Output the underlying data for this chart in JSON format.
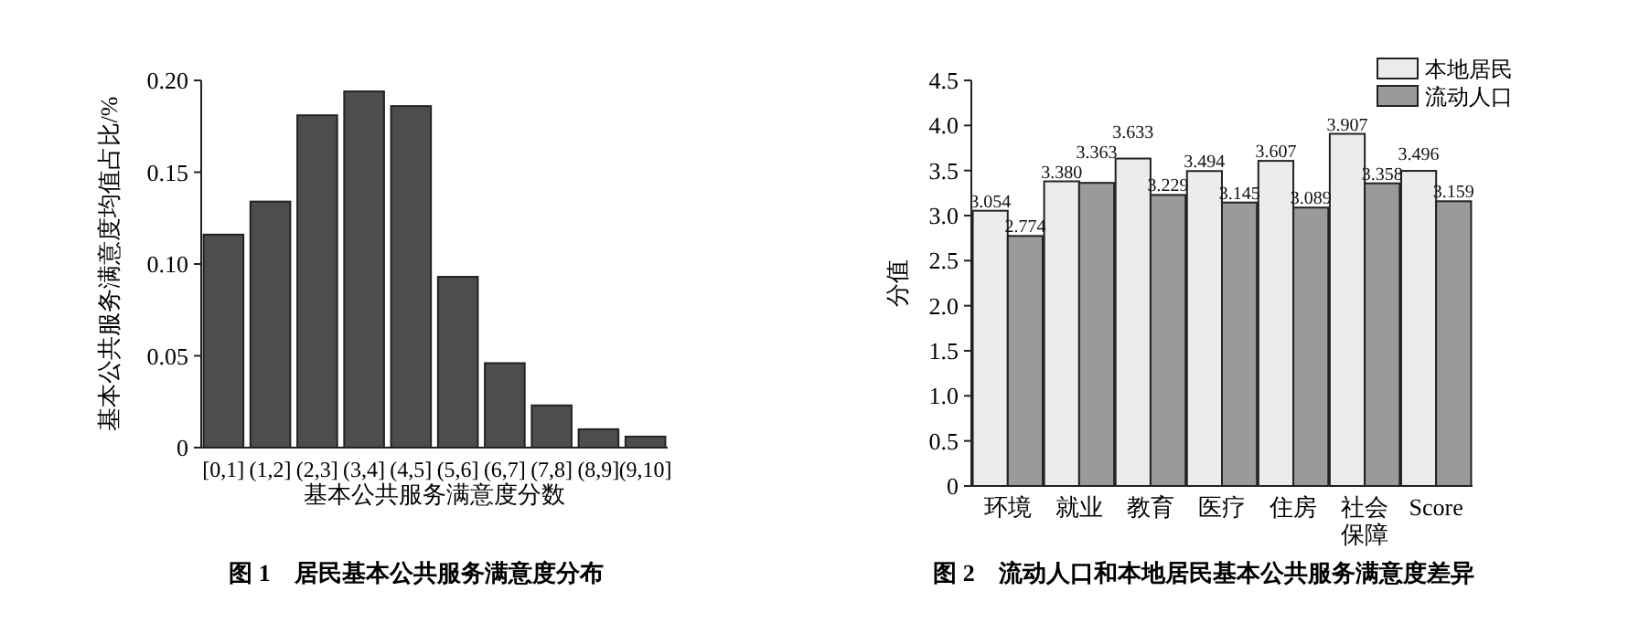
{
  "chart_data": [
    {
      "type": "bar",
      "title": "图 1　居民基本公共服务满意度分布",
      "xlabel": "基本公共服务满意度分数",
      "ylabel": "基本公共服务满意度均值占比/%",
      "categories": [
        "[0,1]",
        "(1,2]",
        "(2,3]",
        "(3,4]",
        "(4,5]",
        "(5,6]",
        "(6,7]",
        "(7,8]",
        "(8,9]",
        "(9,10]"
      ],
      "values": [
        0.116,
        0.134,
        0.181,
        0.194,
        0.186,
        0.093,
        0.046,
        0.023,
        0.01,
        0.006
      ],
      "color": "#4d4d4d",
      "ylim": [
        0,
        0.2
      ],
      "yticks": [
        0,
        0.05,
        {
          "value": 0.1,
          "label": "0.10"
        },
        0.15,
        {
          "value": 0.2,
          "label": "0.20"
        }
      ],
      "grid": false,
      "legend": false
    },
    {
      "type": "bar",
      "title": "图 2　流动人口和本地居民基本公共服务满意度差异",
      "ylabel": "分值",
      "categories": [
        "环境",
        "就业",
        "教育",
        "医疗",
        "住房",
        "社会保障",
        "Score"
      ],
      "series": [
        {
          "name": "本地居民",
          "color": "#ececec",
          "values": [
            3.054,
            3.38,
            3.633,
            3.494,
            3.607,
            3.907,
            3.496
          ],
          "value_labels": [
            "3.054",
            "3.380",
            "3.633",
            "3.494",
            "3.607",
            "3.907",
            "3.496"
          ]
        },
        {
          "name": "流动人口",
          "color": "#9a9a9a",
          "values": [
            2.774,
            3.363,
            3.229,
            3.145,
            3.089,
            3.358,
            3.159
          ],
          "value_labels": [
            "2.774",
            "3.363",
            "3.229",
            "3.145",
            "3.089",
            "3.358",
            "3.159"
          ]
        }
      ],
      "ylim": [
        0,
        4.5
      ],
      "yticks": [
        0,
        {
          "value": 0.5,
          "label": "0.5"
        },
        {
          "value": 1,
          "label": "1.0"
        },
        {
          "value": 1.5,
          "label": "1.5"
        },
        {
          "value": 2,
          "label": "2.0"
        },
        {
          "value": 2.5,
          "label": "2.5"
        },
        {
          "value": 3,
          "label": "3.0"
        },
        {
          "value": 3.5,
          "label": "3.5"
        },
        {
          "value": 4,
          "label": "4.0"
        },
        {
          "value": 4.5,
          "label": "4.5"
        }
      ],
      "grid": false,
      "legend": "top right"
    }
  ]
}
